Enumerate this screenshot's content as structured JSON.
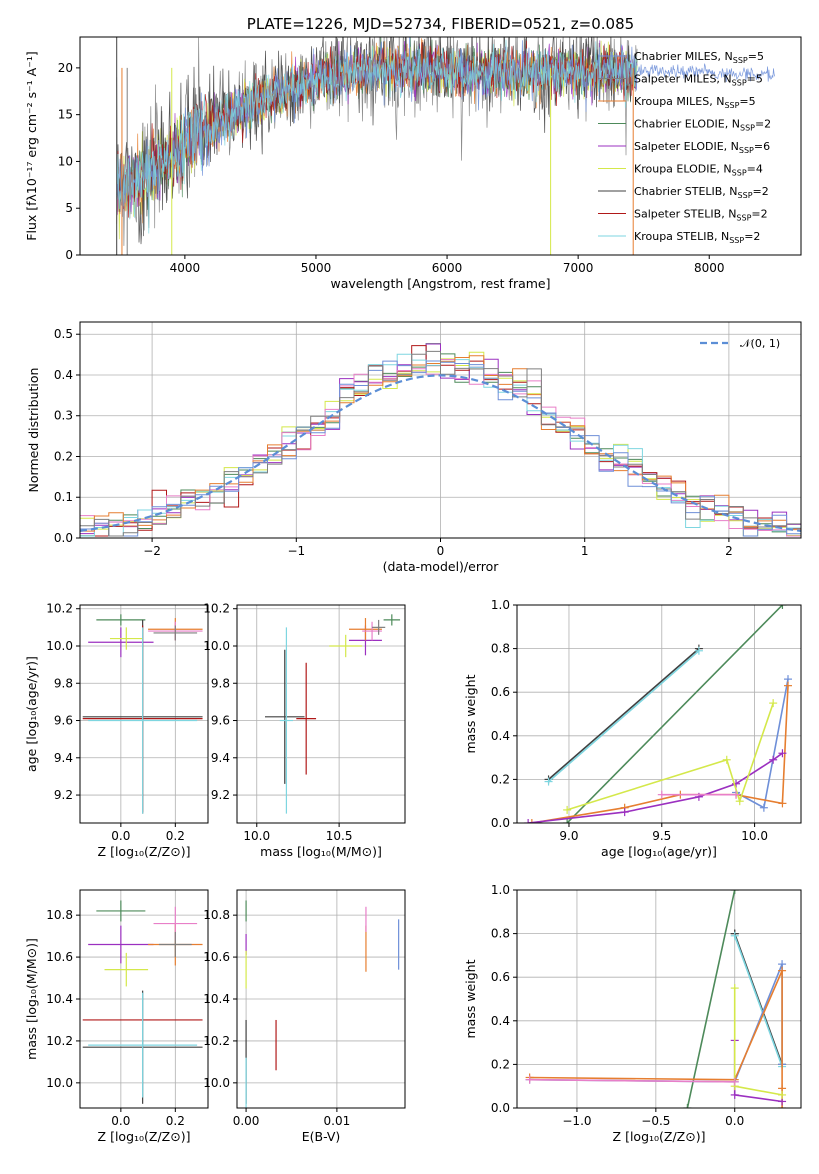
{
  "chart_data": [
    {
      "id": "spectrum",
      "type": "line",
      "title": "PLATE=1226, MJD=52734, FIBERID=0521, z=0.085",
      "xlabel": "wavelength [Angstrom, rest frame]",
      "ylabel": "Flux [fλ10⁻¹⁷ erg cm⁻² s⁻¹ A⁻¹]",
      "xlim": [
        3200,
        8700
      ],
      "ylim": [
        0,
        23.3
      ],
      "xticks": [
        4000,
        5000,
        6000,
        7000,
        8000
      ],
      "yticks": [
        0,
        5,
        10,
        15,
        20
      ],
      "grid": false,
      "legend_position": "right",
      "series": [
        {
          "name": "Chabrier MILES, N",
          "sub": "SSP",
          "suffix": "=5",
          "color": "#6e8fd8",
          "marker": "+"
        },
        {
          "name": "Salpeter MILES, N",
          "sub": "SSP",
          "suffix": "=5",
          "color": "#7f7f7f",
          "marker": "+"
        },
        {
          "name": "Kroupa MILES, N",
          "sub": "SSP",
          "suffix": "=5",
          "color": "#e67e30",
          "marker": ""
        },
        {
          "name": "Chabrier ELODIE, N",
          "sub": "SSP",
          "suffix": "=2",
          "color": "#4d8a5a",
          "marker": ""
        },
        {
          "name": "Salpeter ELODIE, N",
          "sub": "SSP",
          "suffix": "=6",
          "color": "#9b30c0",
          "marker": ""
        },
        {
          "name": "Kroupa ELODIE, N",
          "sub": "SSP",
          "suffix": "=4",
          "color": "#d4e84a",
          "marker": ""
        },
        {
          "name": "Chabrier STELIB, N",
          "sub": "SSP",
          "suffix": "=2",
          "color": "#404040",
          "marker": ""
        },
        {
          "name": "Salpeter STELIB, N",
          "sub": "SSP",
          "suffix": "=2",
          "color": "#b01818",
          "marker": ""
        },
        {
          "name": "Kroupa STELIB, N",
          "sub": "SSP",
          "suffix": "=2",
          "color": "#7ed6e0",
          "marker": ""
        }
      ],
      "continuum": {
        "x": [
          3500,
          3700,
          3900,
          4100,
          4300,
          4500,
          4700,
          4900,
          5100,
          5300,
          5500,
          5700,
          5900,
          6100,
          6300,
          6500,
          6700,
          6900,
          7100,
          7300,
          7500
        ],
        "y": [
          7,
          8.5,
          10.5,
          13,
          14.5,
          16,
          17.2,
          18.2,
          19,
          19.6,
          20,
          20,
          19.9,
          19.5,
          19.4,
          19.5,
          19.5,
          19.6,
          19.5,
          19.6,
          19.5
        ]
      },
      "tail": {
        "x": [
          7450,
          8500
        ],
        "y": [
          19.8,
          19.2
        ]
      }
    },
    {
      "id": "residuals",
      "type": "step",
      "xlabel": "(data-model)/error",
      "ylabel": "Normed distribution",
      "xlim": [
        -2.5,
        2.5
      ],
      "ylim": [
        0,
        0.53
      ],
      "xticks": [
        -2,
        -1,
        0,
        1,
        2
      ],
      "yticks": [
        0.0,
        0.1,
        0.2,
        0.3,
        0.4,
        0.5
      ],
      "grid": true,
      "legend": [
        {
          "name": "𝒩(0, 1)",
          "color": "#5b8ed6",
          "dash": true
        }
      ],
      "legend_position": "top-right",
      "bin_width": 0.1
    },
    {
      "id": "age-vs-Z",
      "type": "errorbar",
      "xlabel": "Z [log₁₀(Z/Z⊙)]",
      "ylabel": "age  [log₁₀(age/yr)]",
      "xlim": [
        -0.15,
        0.32
      ],
      "ylim": [
        9.05,
        10.22
      ],
      "xticks": [
        0.0,
        0.2
      ],
      "yticks": [
        9.2,
        9.4,
        9.6,
        9.8,
        10.0,
        10.2
      ],
      "grid": true,
      "points": [
        {
          "x": 0.0,
          "y": 10.14,
          "xe": 0.09,
          "ye": 0.03,
          "color": "#4d8a5a"
        },
        {
          "x": 0.0,
          "y": 10.02,
          "xe": 0.12,
          "ye": 0.08,
          "color": "#9b30c0"
        },
        {
          "x": 0.02,
          "y": 10.04,
          "xe": 0.06,
          "ye": 0.06,
          "color": "#d4e84a"
        },
        {
          "x": 0.2,
          "y": 10.09,
          "xe": 0.1,
          "ye": 0.06,
          "color": "#e67e30"
        },
        {
          "x": 0.2,
          "y": 10.08,
          "xe": 0.1,
          "ye": 0.05,
          "color": "#e87fc8"
        },
        {
          "x": 0.2,
          "y": 10.07,
          "xe": 0.08,
          "ye": 0.04,
          "color": "#7f7f7f"
        },
        {
          "x": 0.08,
          "y": 9.62,
          "xe": 0.22,
          "ye": 0.52,
          "color": "#404040"
        },
        {
          "x": 0.08,
          "y": 9.61,
          "xe": 0.22,
          "ye": 0.5,
          "color": "#b01818"
        },
        {
          "x": 0.08,
          "y": 9.6,
          "xe": 0.2,
          "ye": 0.5,
          "color": "#7ed6e0"
        }
      ]
    },
    {
      "id": "age-vs-mass",
      "type": "errorbar",
      "xlabel": "mass [log₁₀(M/M⊙)]",
      "ylabel": "",
      "xlim": [
        9.88,
        10.9
      ],
      "ylim": [
        9.05,
        10.22
      ],
      "xticks": [
        10.0,
        10.5
      ],
      "yticks": [
        9.2,
        9.4,
        9.6,
        9.8,
        10.0,
        10.2
      ],
      "grid": true,
      "points": [
        {
          "x": 10.82,
          "y": 10.14,
          "xe": 0.05,
          "ye": 0.03,
          "color": "#4d8a5a"
        },
        {
          "x": 10.66,
          "y": 10.03,
          "xe": 0.1,
          "ye": 0.08,
          "color": "#9b30c0"
        },
        {
          "x": 10.54,
          "y": 10.0,
          "xe": 0.1,
          "ye": 0.06,
          "color": "#d4e84a"
        },
        {
          "x": 10.66,
          "y": 10.09,
          "xe": 0.1,
          "ye": 0.06,
          "color": "#e67e30"
        },
        {
          "x": 10.7,
          "y": 10.08,
          "xe": 0.06,
          "ye": 0.05,
          "color": "#e87fc8"
        },
        {
          "x": 10.74,
          "y": 10.1,
          "xe": 0.04,
          "ye": 0.04,
          "color": "#7f7f7f"
        },
        {
          "x": 10.17,
          "y": 9.62,
          "xe": 0.12,
          "ye": 0.36,
          "color": "#404040"
        },
        {
          "x": 10.3,
          "y": 9.61,
          "xe": 0.06,
          "ye": 0.3,
          "color": "#b01818"
        },
        {
          "x": 10.18,
          "y": 9.6,
          "xe": 0.04,
          "ye": 0.5,
          "color": "#7ed6e0"
        }
      ]
    },
    {
      "id": "weight-vs-age",
      "type": "line",
      "xlabel": "age  [log₁₀(age/yr)]",
      "ylabel": "mass weight",
      "xlim": [
        8.72,
        10.25
      ],
      "ylim": [
        0,
        1
      ],
      "xticks": [
        9.0,
        9.5,
        10.0
      ],
      "yticks": [
        0.0,
        0.2,
        0.4,
        0.6,
        0.8,
        1.0
      ],
      "grid": true,
      "series": [
        {
          "color": "#404040",
          "x": [
            8.89,
            9.7
          ],
          "y": [
            0.2,
            0.8
          ]
        },
        {
          "color": "#7ed6e0",
          "x": [
            8.89,
            9.7
          ],
          "y": [
            0.19,
            0.79
          ]
        },
        {
          "color": "#4d8a5a",
          "x": [
            8.99,
            10.15
          ],
          "y": [
            0.0,
            1.0
          ]
        },
        {
          "color": "#6e8fd8",
          "x": [
            9.9,
            10.05,
            10.18
          ],
          "y": [
            0.14,
            0.07,
            0.66
          ]
        },
        {
          "color": "#e67e30",
          "x": [
            8.8,
            9.3,
            9.6,
            9.9,
            10.15,
            10.18
          ],
          "y": [
            0.0,
            0.07,
            0.13,
            0.13,
            0.09,
            0.63
          ]
        },
        {
          "color": "#9b30c0",
          "x": [
            8.78,
            9.3,
            9.7,
            9.9,
            10.1,
            10.15
          ],
          "y": [
            0.0,
            0.05,
            0.12,
            0.18,
            0.29,
            0.32
          ]
        },
        {
          "color": "#d4e84a",
          "x": [
            8.99,
            9.85,
            9.92,
            10.1
          ],
          "y": [
            0.06,
            0.29,
            0.1,
            0.55
          ]
        },
        {
          "color": "#e87fc8",
          "x": [
            9.5,
            9.9
          ],
          "y": [
            0.13,
            0.13
          ]
        }
      ]
    },
    {
      "id": "mass-vs-Z",
      "type": "errorbar",
      "xlabel": "Z [log₁₀(Z/Z⊙)]",
      "ylabel": "mass [log₁₀(M/M⊙)]",
      "xlim": [
        -0.15,
        0.32
      ],
      "ylim": [
        9.88,
        10.92
      ],
      "xticks": [
        0.0,
        0.2
      ],
      "yticks": [
        10.0,
        10.2,
        10.4,
        10.6,
        10.8
      ],
      "grid": true,
      "points": [
        {
          "x": 0.0,
          "y": 10.82,
          "xe": 0.09,
          "ye": 0.05,
          "color": "#4d8a5a"
        },
        {
          "x": 0.0,
          "y": 10.66,
          "xe": 0.12,
          "ye": 0.09,
          "color": "#9b30c0"
        },
        {
          "x": 0.02,
          "y": 10.54,
          "xe": 0.08,
          "ye": 0.08,
          "color": "#d4e84a"
        },
        {
          "x": 0.2,
          "y": 10.66,
          "xe": 0.1,
          "ye": 0.1,
          "color": "#e67e30"
        },
        {
          "x": 0.2,
          "y": 10.76,
          "xe": 0.08,
          "ye": 0.08,
          "color": "#e87fc8"
        },
        {
          "x": 0.2,
          "y": 10.66,
          "xe": 0.06,
          "ye": 0.06,
          "color": "#7f7f7f"
        },
        {
          "x": 0.08,
          "y": 10.17,
          "xe": 0.22,
          "ye": 0.27,
          "color": "#404040"
        },
        {
          "x": 0.08,
          "y": 10.3,
          "xe": 0.22,
          "ye": 0.0,
          "color": "#b01818"
        },
        {
          "x": 0.08,
          "y": 10.18,
          "xe": 0.2,
          "ye": 0.25,
          "color": "#7ed6e0"
        }
      ]
    },
    {
      "id": "mass-vs-EBV",
      "type": "errorbar",
      "xlabel": "E(B-V)",
      "ylabel": "",
      "xlim": [
        -0.001,
        0.0175
      ],
      "ylim": [
        9.88,
        10.92
      ],
      "xticks": [
        0.0,
        0.01
      ],
      "yticks": [
        10.0,
        10.2,
        10.4,
        10.6,
        10.8
      ],
      "grid": true,
      "points": [
        {
          "x": 0.0,
          "y": 10.82,
          "xe": 0.0,
          "ye": 0.05,
          "color": "#4d8a5a"
        },
        {
          "x": 0.0,
          "y": 10.66,
          "xe": 0.0,
          "ye": 0.05,
          "color": "#9b30c0"
        },
        {
          "x": 0.0,
          "y": 10.54,
          "xe": 0.0,
          "ye": 0.09,
          "color": "#d4e84a"
        },
        {
          "x": 0.0132,
          "y": 10.64,
          "xe": 0.0,
          "ye": 0.11,
          "color": "#e67e30"
        },
        {
          "x": 0.0132,
          "y": 10.78,
          "xe": 0.0,
          "ye": 0.06,
          "color": "#e87fc8"
        },
        {
          "x": 0.0168,
          "y": 10.66,
          "xe": 0.0,
          "ye": 0.12,
          "color": "#6e8fd8"
        },
        {
          "x": 0.0,
          "y": 10.1,
          "xe": 0.0,
          "ye": 0.2,
          "color": "#404040"
        },
        {
          "x": 0.0033,
          "y": 10.18,
          "xe": 0.0,
          "ye": 0.12,
          "color": "#b01818"
        },
        {
          "x": 0.0,
          "y": 10.0,
          "xe": 0.0,
          "ye": 0.12,
          "color": "#7ed6e0"
        }
      ]
    },
    {
      "id": "weight-vs-Z",
      "type": "line",
      "xlabel": "Z [log₁₀(Z/Z⊙)]",
      "ylabel": "mass weight",
      "xlim": [
        -1.38,
        0.42
      ],
      "ylim": [
        0,
        1
      ],
      "xticks": [
        -1.0,
        -0.5,
        0.0
      ],
      "yticks": [
        0.0,
        0.2,
        0.4,
        0.6,
        0.8,
        1.0
      ],
      "grid": true,
      "series": [
        {
          "color": "#4d8a5a",
          "x": [
            -0.3,
            0.0
          ],
          "y": [
            0.0,
            1.0
          ]
        },
        {
          "color": "#404040",
          "x": [
            0.0,
            0.0,
            0.3
          ],
          "y": [
            0.8,
            0.8,
            0.2
          ]
        },
        {
          "color": "#7ed6e0",
          "x": [
            0.0,
            0.3
          ],
          "y": [
            0.79,
            0.19
          ]
        },
        {
          "color": "#6e8fd8",
          "x": [
            -1.3,
            0.0,
            0.3,
            0.3
          ],
          "y": [
            0.13,
            0.12,
            0.66,
            0.2
          ]
        },
        {
          "color": "#e67e30",
          "x": [
            -1.3,
            0.0,
            0.3,
            0.3,
            0.3
          ],
          "y": [
            0.14,
            0.13,
            0.63,
            0.09,
            0.0
          ]
        },
        {
          "color": "#9b30c0",
          "x": [
            0.0,
            0.0,
            0.3
          ],
          "y": [
            0.31,
            0.06,
            0.03
          ]
        },
        {
          "color": "#d4e84a",
          "x": [
            0.0,
            0.0,
            0.3
          ],
          "y": [
            0.55,
            0.1,
            0.06
          ]
        },
        {
          "color": "#e87fc8",
          "x": [
            -1.3,
            0.0
          ],
          "y": [
            0.13,
            0.12
          ]
        }
      ]
    }
  ]
}
